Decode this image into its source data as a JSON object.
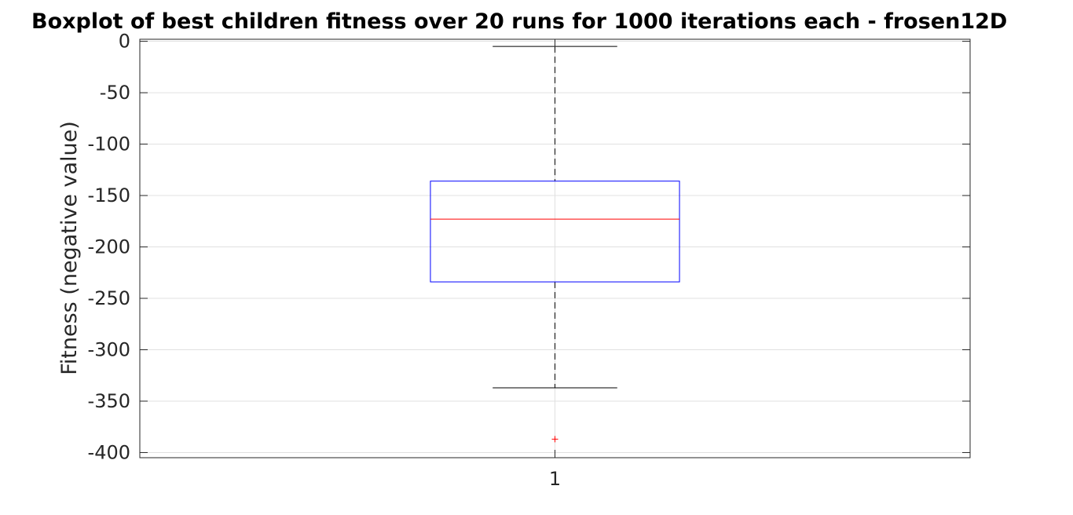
{
  "chart_data": {
    "type": "boxplot",
    "title": "Boxplot of best children fitness over 20 runs for 1000 iterations each - frosen12D",
    "xlabel": "",
    "ylabel": "Fitness (negative value)",
    "categories": [
      "1"
    ],
    "ylim": [
      -405,
      2
    ],
    "yticks": [
      0,
      -50,
      -100,
      -150,
      -200,
      -250,
      -300,
      -350,
      -400
    ],
    "ytick_labels": [
      "0",
      "-50",
      "-100",
      "-150",
      "-200",
      "-250",
      "-300",
      "-350",
      "-400"
    ],
    "grid": true,
    "boxes": [
      {
        "category": "1",
        "upper_whisker": -5,
        "q3": -136,
        "median": -173,
        "q1": -234,
        "lower_whisker": -337,
        "outliers": [
          -387
        ]
      }
    ],
    "colors": {
      "box": "#0000ff",
      "median": "#ff0000",
      "whisker": "#000000",
      "outlier": "#ff0000",
      "grid": "#e0e0e0",
      "axes": "#262626"
    }
  }
}
